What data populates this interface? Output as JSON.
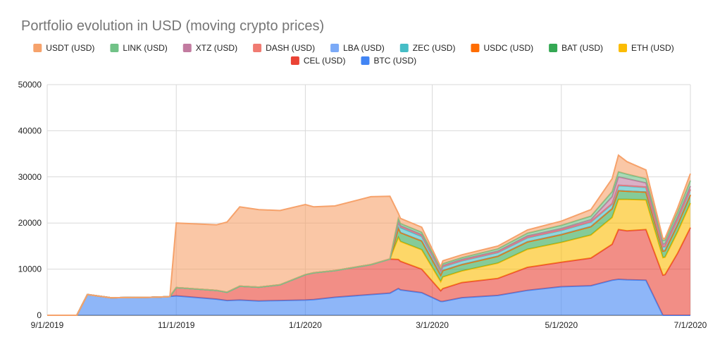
{
  "chart_data": {
    "type": "area",
    "stacked": true,
    "title": "Portfolio evolution in USD (moving crypto prices)",
    "xlabel": "",
    "ylabel": "",
    "ylim": [
      0,
      50000
    ],
    "yticks": [
      "0",
      "10000",
      "20000",
      "30000",
      "40000",
      "50000"
    ],
    "xticks": [
      {
        "label": "9/1/2019",
        "date": "2019-09-01"
      },
      {
        "label": "11/1/2019",
        "date": "2019-11-01"
      },
      {
        "label": "1/1/2020",
        "date": "2020-01-01"
      },
      {
        "label": "3/1/2020",
        "date": "2020-03-01"
      },
      {
        "label": "5/1/2020",
        "date": "2020-05-01"
      },
      {
        "label": "7/1/2020",
        "date": "2020-07-01"
      }
    ],
    "xlim": [
      "2019-09-01",
      "2020-07-01"
    ],
    "grid": true,
    "legend_position": "top",
    "x": [
      "2019-09-01",
      "2019-09-15",
      "2019-09-20",
      "2019-10-01",
      "2019-10-20",
      "2019-10-28",
      "2019-10-29",
      "2019-11-01",
      "2019-11-20",
      "2019-11-25",
      "2019-12-01",
      "2019-12-10",
      "2019-12-20",
      "2020-01-01",
      "2020-01-05",
      "2020-01-15",
      "2020-02-01",
      "2020-02-10",
      "2020-02-14",
      "2020-02-15",
      "2020-02-25",
      "2020-03-05",
      "2020-03-06",
      "2020-03-15",
      "2020-04-01",
      "2020-04-15",
      "2020-05-01",
      "2020-05-15",
      "2020-05-25",
      "2020-05-28",
      "2020-06-01",
      "2020-06-10",
      "2020-06-18",
      "2020-06-19",
      "2020-06-25",
      "2020-07-01"
    ],
    "series": [
      {
        "name": "BTC (USD)",
        "color": "#4285f4",
        "values": [
          0,
          0,
          4500,
          3800,
          3900,
          4000,
          4100,
          4200,
          3500,
          3200,
          3300,
          3100,
          3200,
          3300,
          3400,
          3900,
          4500,
          4800,
          5800,
          5500,
          4900,
          3000,
          3000,
          3800,
          4300,
          5400,
          6200,
          6400,
          7600,
          7800,
          7700,
          7600,
          0,
          0,
          0,
          0
        ]
      },
      {
        "name": "CEL (USD)",
        "color": "#ea4335",
        "values": [
          0,
          0,
          0,
          0,
          0,
          0,
          0,
          1800,
          1900,
          1800,
          3000,
          3000,
          3400,
          5500,
          5800,
          5800,
          6500,
          7400,
          6300,
          6200,
          5100,
          2300,
          2800,
          3300,
          3700,
          5000,
          5300,
          6000,
          7800,
          10800,
          10600,
          11000,
          8700,
          8800,
          13500,
          19000
        ]
      },
      {
        "name": "ETH (USD)",
        "color": "#fbbc04",
        "values": [
          0,
          0,
          0,
          0,
          0,
          0,
          0,
          0,
          0,
          0,
          0,
          0,
          0,
          0,
          0,
          0,
          0,
          0,
          4800,
          4300,
          4200,
          2000,
          2500,
          2500,
          3300,
          3900,
          4300,
          5000,
          5800,
          6500,
          6800,
          6400,
          3800,
          3800,
          4600,
          5300
        ]
      },
      {
        "name": "BAT (USD)",
        "color": "#34a853",
        "values": [
          0,
          0,
          0,
          0,
          0,
          0,
          0,
          0,
          0,
          0,
          0,
          0,
          0,
          0,
          0,
          0,
          0,
          0,
          2000,
          1900,
          1900,
          1400,
          1400,
          1400,
          1500,
          1600,
          1700,
          1800,
          1900,
          1900,
          1800,
          1700,
          1400,
          1400,
          1600,
          1800
        ]
      },
      {
        "name": "USDC (USD)",
        "color": "#ff6d01",
        "values": [
          0,
          0,
          0,
          0,
          0,
          0,
          0,
          0,
          0,
          0,
          0,
          0,
          0,
          0,
          0,
          0,
          0,
          0,
          0,
          0,
          0,
          0,
          0,
          0,
          0,
          0,
          0,
          0,
          0,
          0,
          0,
          0,
          0,
          0,
          0,
          0
        ]
      },
      {
        "name": "ZEC (USD)",
        "color": "#46bdc6",
        "values": [
          0,
          0,
          0,
          0,
          0,
          0,
          0,
          0,
          0,
          0,
          0,
          0,
          0,
          0,
          0,
          0,
          0,
          0,
          1200,
          1100,
          1000,
          800,
          800,
          800,
          800,
          900,
          900,
          1000,
          1000,
          1100,
          1100,
          1000,
          900,
          900,
          1000,
          1100
        ]
      },
      {
        "name": "LBA (USD)",
        "color": "#7baaf7",
        "values": [
          0,
          0,
          0,
          0,
          0,
          0,
          0,
          0,
          0,
          0,
          0,
          0,
          0,
          0,
          0,
          0,
          0,
          0,
          200,
          200,
          200,
          100,
          100,
          100,
          100,
          100,
          100,
          100,
          100,
          100,
          100,
          100,
          100,
          100,
          100,
          100
        ]
      },
      {
        "name": "DASH (USD)",
        "color": "#f07b72",
        "values": [
          0,
          0,
          0,
          0,
          0,
          0,
          0,
          0,
          0,
          0,
          0,
          0,
          0,
          0,
          0,
          0,
          0,
          0,
          0,
          0,
          0,
          0,
          0,
          0,
          0,
          0,
          0,
          0,
          0,
          0,
          0,
          0,
          0,
          0,
          0,
          0
        ]
      },
      {
        "name": "XTZ (USD)",
        "color": "#c27ba0",
        "values": [
          0,
          0,
          0,
          0,
          0,
          0,
          0,
          0,
          0,
          0,
          0,
          0,
          0,
          0,
          0,
          0,
          0,
          0,
          200,
          200,
          200,
          200,
          200,
          200,
          200,
          300,
          300,
          400,
          1500,
          1800,
          1500,
          900,
          500,
          500,
          600,
          700
        ]
      },
      {
        "name": "LINK (USD)",
        "color": "#71c287",
        "values": [
          0,
          0,
          0,
          0,
          0,
          0,
          0,
          0,
          0,
          0,
          0,
          0,
          0,
          0,
          0,
          0,
          0,
          0,
          500,
          500,
          500,
          400,
          400,
          400,
          500,
          600,
          700,
          800,
          1100,
          1100,
          1000,
          900,
          800,
          800,
          1000,
          1200
        ]
      },
      {
        "name": "USDT (USD)",
        "color": "#f6a26b",
        "values": [
          0,
          0,
          0,
          0,
          0,
          0,
          0,
          14000,
          14200,
          15200,
          17200,
          16800,
          16100,
          15200,
          14300,
          14000,
          14700,
          13600,
          1100,
          1100,
          1100,
          300,
          600,
          600,
          600,
          700,
          900,
          1400,
          2800,
          3600,
          2700,
          1900,
          400,
          400,
          900,
          1500
        ]
      }
    ],
    "legend_order": [
      "USDT (USD)",
      "LINK (USD)",
      "XTZ (USD)",
      "DASH (USD)",
      "LBA (USD)",
      "ZEC (USD)",
      "USDC (USD)",
      "BAT (USD)",
      "ETH (USD)",
      "CEL (USD)",
      "BTC (USD)"
    ]
  }
}
